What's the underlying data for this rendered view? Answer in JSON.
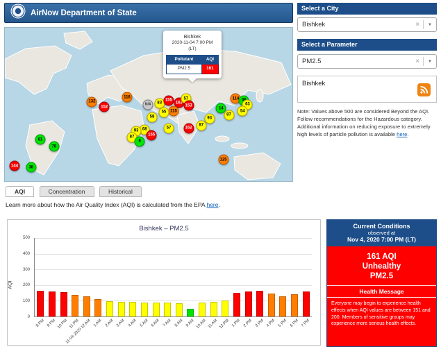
{
  "header": {
    "title": "AirNow Department of State"
  },
  "icons": {
    "clear": "×",
    "dropdown_arrow": "▼"
  },
  "map": {
    "popup": {
      "city": "Bishkek",
      "datetime": "2020-11-04 7:00 PM",
      "timezone": "(LT)",
      "col_pollutant": "Pollutant",
      "col_aqi": "AQI",
      "pollutant": "PM2.5",
      "aqi": "161"
    },
    "markers": [
      {
        "v": "61",
        "x": 12.3,
        "y": 73.0,
        "c": "green"
      },
      {
        "v": "76",
        "x": 17.1,
        "y": 77.5,
        "c": "green"
      },
      {
        "v": "144",
        "x": 3.4,
        "y": 90.1,
        "c": "red"
      },
      {
        "v": "38",
        "x": 9.1,
        "y": 91.0,
        "c": "green"
      },
      {
        "v": "132",
        "x": 30.3,
        "y": 48.4,
        "c": "orange"
      },
      {
        "v": "152",
        "x": 34.6,
        "y": 51.6,
        "c": "red"
      },
      {
        "v": "118",
        "x": 42.5,
        "y": 45.3,
        "c": "orange"
      },
      {
        "v": "N/A",
        "x": 49.8,
        "y": 50.2,
        "c": "gray"
      },
      {
        "v": "83",
        "x": 53.8,
        "y": 49.3,
        "c": "yellow"
      },
      {
        "v": "155",
        "x": 57.0,
        "y": 47.5,
        "c": "red"
      },
      {
        "v": "163",
        "x": 60.6,
        "y": 48.9,
        "c": "red"
      },
      {
        "v": "57",
        "x": 63.0,
        "y": 46.2,
        "c": "yellow"
      },
      {
        "v": "153",
        "x": 63.9,
        "y": 50.7,
        "c": "red"
      },
      {
        "v": "115",
        "x": 58.7,
        "y": 54.3,
        "c": "orange"
      },
      {
        "v": "55",
        "x": 55.3,
        "y": 55.2,
        "c": "yellow"
      },
      {
        "v": "58",
        "x": 51.2,
        "y": 58.3,
        "c": "yellow"
      },
      {
        "v": "68",
        "x": 48.6,
        "y": 66.4,
        "c": "yellow"
      },
      {
        "v": "93",
        "x": 45.7,
        "y": 67.3,
        "c": "yellow"
      },
      {
        "v": "87",
        "x": 44.2,
        "y": 71.3,
        "c": "yellow"
      },
      {
        "v": "8",
        "x": 46.9,
        "y": 74.0,
        "c": "green"
      },
      {
        "v": "155",
        "x": 51.0,
        "y": 70.0,
        "c": "red"
      },
      {
        "v": "57",
        "x": 57.0,
        "y": 65.5,
        "c": "yellow"
      },
      {
        "v": "162",
        "x": 63.9,
        "y": 65.5,
        "c": "red"
      },
      {
        "v": "87",
        "x": 68.3,
        "y": 63.7,
        "c": "yellow"
      },
      {
        "v": "93",
        "x": 71.2,
        "y": 59.2,
        "c": "yellow"
      },
      {
        "v": "14",
        "x": 75.2,
        "y": 52.5,
        "c": "green"
      },
      {
        "v": "114",
        "x": 80.3,
        "y": 46.2,
        "c": "orange"
      },
      {
        "v": "06",
        "x": 83.2,
        "y": 47.5,
        "c": "green"
      },
      {
        "v": "63",
        "x": 84.4,
        "y": 50.2,
        "c": "yellow"
      },
      {
        "v": "54",
        "x": 82.7,
        "y": 54.3,
        "c": "yellow"
      },
      {
        "v": "87",
        "x": 77.9,
        "y": 57.0,
        "c": "yellow"
      },
      {
        "v": "125",
        "x": 76.0,
        "y": 86.1,
        "c": "orange"
      }
    ]
  },
  "sidebar": {
    "city_header": "Select a City",
    "city_value": "Bishkek",
    "param_header": "Select a Parameter",
    "param_value": "PM2.5",
    "feed_title": "Bishkek",
    "note_text": "Note: Values above 500 are considered Beyond the AQI. Follow recommendations for the Hazardous category. Additional information on reducing exposure to extremely high levels of particle pollution is available ",
    "note_link": "here",
    "note_suffix": "."
  },
  "tabs": [
    {
      "label": "AQI"
    },
    {
      "label": "Concentration"
    },
    {
      "label": "Historical"
    }
  ],
  "learn_more": {
    "text": "Learn more about how the Air Quality Index (AQI) is calculated from the EPA ",
    "link": "here",
    "suffix": "."
  },
  "chart_data": {
    "type": "bar",
    "title": "Bishkek – PM2.5",
    "ylabel": "AQI",
    "ylim": [
      0,
      500
    ],
    "yticks": [
      0,
      100,
      200,
      300,
      400,
      500
    ],
    "grid": true,
    "categories": [
      "8 PM",
      "9 PM",
      "10 PM",
      "11 PM",
      "11-04-2020 12 AM",
      "1 AM",
      "2 AM",
      "3 AM",
      "4 AM",
      "5 AM",
      "6 AM",
      "7 AM",
      "8 AM",
      "9 AM",
      "10 AM",
      "11 AM",
      "12 PM",
      "1 PM",
      "2 PM",
      "3 PM",
      "4 PM",
      "5 PM",
      "6 PM",
      "7 PM"
    ],
    "values": [
      162,
      160,
      155,
      138,
      130,
      112,
      98,
      95,
      92,
      90,
      88,
      90,
      85,
      50,
      88,
      92,
      100,
      152,
      158,
      165,
      145,
      128,
      140,
      161
    ],
    "colors": [
      "red",
      "red",
      "red",
      "orange",
      "orange",
      "orange",
      "yellow",
      "yellow",
      "yellow",
      "yellow",
      "yellow",
      "yellow",
      "yellow",
      "green",
      "yellow",
      "yellow",
      "yellow",
      "red",
      "red",
      "red",
      "orange",
      "orange",
      "orange",
      "red"
    ]
  },
  "current_conditions": {
    "title": "Current Conditions",
    "observed_at": "observed at",
    "datetime": "Nov 4, 2020 7:00 PM (LT)",
    "aqi": "161 AQI",
    "category": "Unhealthy",
    "pollutant": "PM2.5",
    "health_title": "Health Message",
    "health_text": "Everyone may begin to experience health effects when AQI values are between 151 and 200. Members of sensitive groups may experience more serious health effects."
  },
  "aqi_colors": {
    "green": "#00e400",
    "yellow": "#ffff00",
    "orange": "#ff7e00",
    "red": "#ff0000",
    "gray": "#b8b8b8"
  }
}
